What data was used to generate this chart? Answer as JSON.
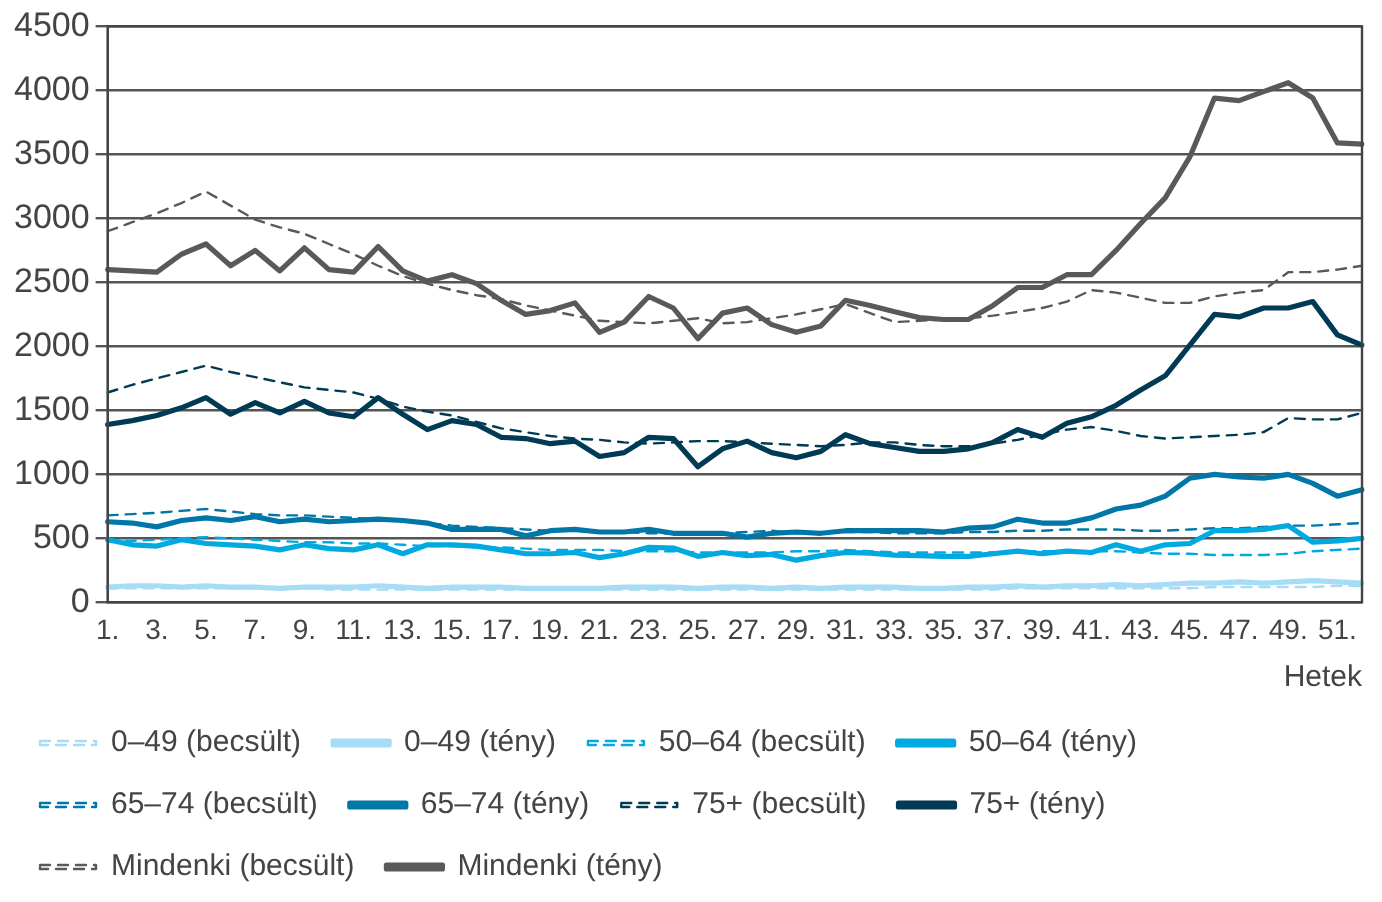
{
  "chart_data": {
    "type": "line",
    "xlabel": "Hetek",
    "categories": [
      "1.",
      null,
      "3.",
      null,
      "5.",
      null,
      "7.",
      null,
      "9.",
      null,
      "11.",
      null,
      "13.",
      null,
      "15.",
      null,
      "17.",
      null,
      "19.",
      null,
      "21.",
      null,
      "23.",
      null,
      "25.",
      null,
      "27.",
      null,
      "29.",
      null,
      "31.",
      null,
      "33.",
      null,
      "35.",
      null,
      "37.",
      null,
      "39.",
      null,
      "41.",
      null,
      "43.",
      null,
      "45.",
      null,
      "47.",
      null,
      "49.",
      null,
      "51.",
      null
    ],
    "ylim": [
      0,
      4500
    ],
    "yticks": [
      0,
      500,
      1000,
      1500,
      2000,
      2500,
      3000,
      3500,
      4000,
      4500
    ],
    "grid": "y",
    "legend": "bottom",
    "marker": "none",
    "series": [
      {
        "name": "0–49 (becsült)",
        "color": "#a6dcf5",
        "line_style": "dashed",
        "values": [
          110,
          110,
          110,
          110,
          110,
          110,
          110,
          110,
          110,
          100,
          100,
          100,
          100,
          100,
          100,
          100,
          100,
          100,
          100,
          100,
          100,
          100,
          100,
          100,
          100,
          100,
          100,
          100,
          100,
          100,
          100,
          100,
          100,
          100,
          100,
          100,
          100,
          110,
          110,
          110,
          110,
          110,
          110,
          110,
          110,
          120,
          120,
          120,
          120,
          120,
          130,
          130
        ]
      },
      {
        "name": "0–49 (tény)",
        "color": "#a6dcf5",
        "line_style": "solid",
        "values": [
          120,
          130,
          130,
          120,
          130,
          120,
          120,
          110,
          120,
          120,
          120,
          130,
          120,
          110,
          120,
          120,
          120,
          110,
          110,
          110,
          110,
          120,
          120,
          120,
          110,
          120,
          120,
          110,
          120,
          110,
          120,
          120,
          120,
          110,
          110,
          120,
          120,
          130,
          120,
          130,
          130,
          140,
          130,
          140,
          150,
          150,
          160,
          150,
          160,
          170,
          160,
          150
        ]
      },
      {
        "name": "50–64 (becsült)",
        "color": "#00a9e0",
        "line_style": "dashed",
        "values": [
          480,
          480,
          490,
          500,
          510,
          500,
          490,
          480,
          470,
          470,
          460,
          460,
          450,
          440,
          440,
          430,
          430,
          420,
          410,
          410,
          410,
          400,
          400,
          400,
          390,
          390,
          390,
          390,
          400,
          400,
          410,
          400,
          390,
          390,
          390,
          390,
          390,
          400,
          400,
          400,
          400,
          400,
          390,
          380,
          380,
          370,
          370,
          370,
          380,
          400,
          410,
          420
        ]
      },
      {
        "name": "50–64 (tény)",
        "color": "#00a9e0",
        "line_style": "solid",
        "values": [
          490,
          450,
          440,
          490,
          460,
          450,
          440,
          410,
          450,
          420,
          410,
          450,
          380,
          450,
          450,
          440,
          410,
          380,
          380,
          390,
          350,
          380,
          430,
          425,
          360,
          390,
          365,
          375,
          330,
          365,
          390,
          385,
          370,
          365,
          360,
          360,
          380,
          400,
          380,
          400,
          390,
          450,
          400,
          450,
          460,
          560,
          560,
          570,
          600,
          470,
          480,
          500
        ]
      },
      {
        "name": "65–74 (becsült)",
        "color": "#0077a8",
        "line_style": "dashed",
        "values": [
          680,
          690,
          700,
          715,
          730,
          710,
          690,
          680,
          680,
          670,
          660,
          650,
          640,
          620,
          600,
          590,
          580,
          570,
          560,
          560,
          550,
          550,
          540,
          540,
          540,
          540,
          550,
          560,
          540,
          540,
          550,
          550,
          540,
          540,
          540,
          550,
          550,
          560,
          560,
          570,
          570,
          570,
          560,
          560,
          570,
          580,
          580,
          590,
          600,
          600,
          610,
          620
        ]
      },
      {
        "name": "65–74 (tény)",
        "color": "#0077a8",
        "line_style": "solid",
        "values": [
          630,
          620,
          590,
          640,
          660,
          640,
          670,
          630,
          650,
          630,
          640,
          650,
          640,
          620,
          570,
          570,
          570,
          520,
          560,
          570,
          550,
          550,
          570,
          540,
          540,
          540,
          510,
          540,
          550,
          540,
          560,
          560,
          560,
          560,
          550,
          580,
          590,
          650,
          620,
          620,
          660,
          730,
          760,
          830,
          970,
          1000,
          980,
          970,
          1000,
          930,
          830,
          880
        ]
      },
      {
        "name": "75+ (becsült)",
        "color": "#003a54",
        "line_style": "dashed",
        "values": [
          1640,
          1700,
          1750,
          1800,
          1850,
          1800,
          1760,
          1720,
          1680,
          1660,
          1640,
          1590,
          1530,
          1490,
          1460,
          1410,
          1360,
          1330,
          1300,
          1280,
          1270,
          1250,
          1240,
          1250,
          1260,
          1260,
          1250,
          1240,
          1230,
          1220,
          1230,
          1250,
          1250,
          1230,
          1220,
          1220,
          1240,
          1270,
          1310,
          1350,
          1370,
          1340,
          1300,
          1280,
          1290,
          1300,
          1310,
          1330,
          1440,
          1430,
          1430,
          1480
        ]
      },
      {
        "name": "75+ (tény)",
        "color": "#003a54",
        "line_style": "solid",
        "values": [
          1390,
          1420,
          1460,
          1520,
          1600,
          1470,
          1560,
          1480,
          1570,
          1480,
          1450,
          1600,
          1470,
          1350,
          1420,
          1390,
          1290,
          1280,
          1240,
          1260,
          1140,
          1170,
          1290,
          1280,
          1060,
          1200,
          1260,
          1170,
          1130,
          1180,
          1310,
          1240,
          1210,
          1180,
          1180,
          1200,
          1250,
          1350,
          1290,
          1400,
          1450,
          1540,
          1660,
          1770,
          2010,
          2250,
          2230,
          2300,
          2300,
          2350,
          2090,
          2010
        ]
      },
      {
        "name": "Mindenki (becsült)",
        "color": "#595959",
        "line_style": "dashed",
        "values": [
          2900,
          2970,
          3040,
          3120,
          3210,
          3100,
          2990,
          2930,
          2880,
          2800,
          2720,
          2630,
          2550,
          2490,
          2440,
          2400,
          2370,
          2320,
          2280,
          2240,
          2200,
          2190,
          2180,
          2200,
          2220,
          2180,
          2190,
          2220,
          2250,
          2290,
          2330,
          2260,
          2190,
          2200,
          2210,
          2220,
          2240,
          2270,
          2300,
          2350,
          2440,
          2420,
          2380,
          2340,
          2340,
          2390,
          2420,
          2440,
          2580,
          2580,
          2600,
          2630
        ]
      },
      {
        "name": "Mindenki (tény)",
        "color": "#595959",
        "line_style": "solid",
        "values": [
          2600,
          2590,
          2580,
          2720,
          2800,
          2630,
          2750,
          2590,
          2770,
          2600,
          2580,
          2780,
          2590,
          2510,
          2560,
          2490,
          2360,
          2250,
          2280,
          2340,
          2110,
          2190,
          2390,
          2300,
          2060,
          2260,
          2300,
          2170,
          2110,
          2160,
          2360,
          2320,
          2270,
          2225,
          2210,
          2210,
          2320,
          2460,
          2460,
          2560,
          2560,
          2750,
          2960,
          3160,
          3480,
          3940,
          3920,
          3990,
          4060,
          3940,
          3590,
          3580
        ]
      }
    ]
  }
}
